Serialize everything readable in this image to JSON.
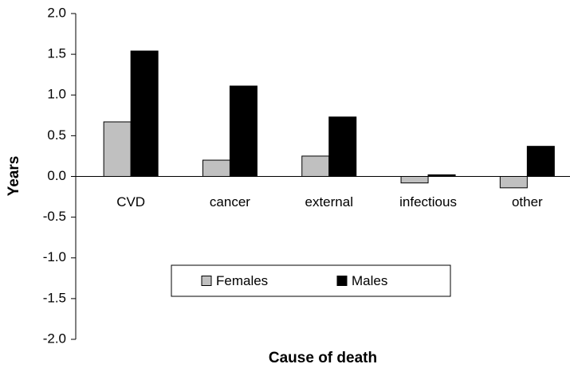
{
  "chart_data": {
    "type": "bar",
    "xlabel": "Cause of death",
    "ylabel": "Years",
    "categories": [
      "CVD",
      "cancer",
      "external",
      "infectious",
      "other"
    ],
    "series": [
      {
        "name": "Females",
        "color": "#c0c0c0",
        "values": [
          0.67,
          0.2,
          0.25,
          -0.08,
          -0.14
        ]
      },
      {
        "name": "Males",
        "color": "#000000",
        "values": [
          1.54,
          1.11,
          0.73,
          0.02,
          0.37
        ]
      }
    ],
    "ylim": [
      -2,
      2
    ],
    "yticks": [
      {
        "value": 2,
        "label": "2.0"
      },
      1.5,
      {
        "value": 1,
        "label": "1.0"
      },
      0.5,
      {
        "value": 0,
        "label": "0.0"
      },
      -0.5,
      {
        "value": -1,
        "label": "-1.0"
      },
      -1.5,
      {
        "value": -2,
        "label": "-2.0"
      }
    ],
    "grid": false,
    "legend": "lower center"
  }
}
